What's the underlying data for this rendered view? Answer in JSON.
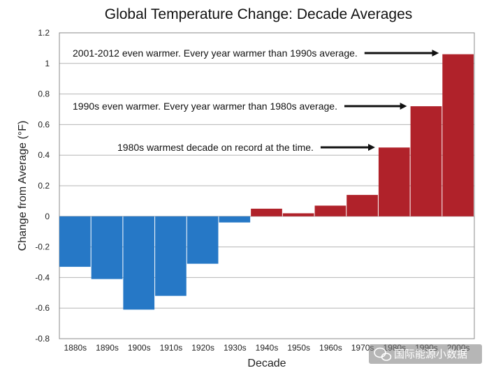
{
  "chart_data": {
    "type": "bar",
    "title": "Global Temperature Change: Decade Averages",
    "xlabel": "Decade",
    "ylabel": "Change from Average (°F)",
    "ylim": [
      -0.8,
      1.2
    ],
    "yticks": [
      "1.2",
      "1",
      "0.8",
      "0.6",
      "0.4",
      "0.2",
      "0",
      "-0.2",
      "-0.4",
      "-0.6",
      "-0.8"
    ],
    "grid": true,
    "categories": [
      "1880s",
      "1890s",
      "1900s",
      "1910s",
      "1920s",
      "1930s",
      "1940s",
      "1950s",
      "1960s",
      "1970s",
      "1980s",
      "1990s",
      "2000s"
    ],
    "values": [
      -0.33,
      -0.41,
      -0.61,
      -0.52,
      -0.31,
      -0.04,
      0.05,
      0.02,
      0.07,
      0.14,
      0.45,
      0.72,
      1.06
    ],
    "colors": {
      "negative": "#2678c6",
      "positive": "#b0222a"
    },
    "annotations": [
      {
        "text": "2001-2012 even warmer. Every year warmer than 1990s average.",
        "points_to": "2000s"
      },
      {
        "text": "1990s even warmer. Every year warmer than 1980s average.",
        "points_to": "1990s"
      },
      {
        "text": "1980s warmest decade on record at the time.",
        "points_to": "1980s"
      }
    ]
  },
  "watermark": {
    "text": "国际能源小数据",
    "icon": "wechat-icon"
  }
}
